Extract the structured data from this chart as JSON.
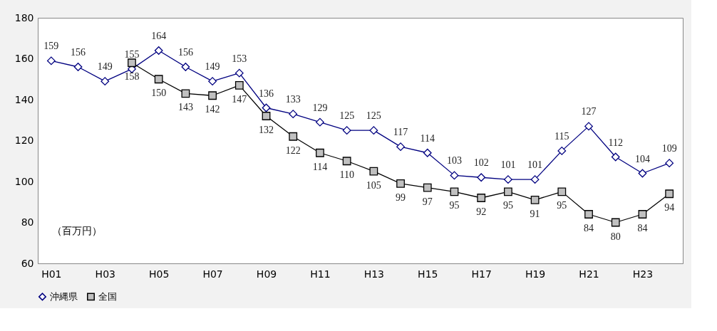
{
  "chart_data": {
    "type": "line",
    "categories": [
      "H01",
      null,
      "H03",
      null,
      "H05",
      null,
      "H07",
      null,
      "H09",
      null,
      "H11",
      null,
      "H13",
      null,
      "H15",
      null,
      "H17",
      null,
      "H19",
      null,
      "H21",
      null,
      "H23",
      null
    ],
    "series": [
      {
        "name": "沖縄県",
        "color": "#000080",
        "marker": "diamond",
        "values": [
          159,
          156,
          149,
          155,
          164,
          156,
          149,
          153,
          136,
          133,
          129,
          125,
          125,
          117,
          114,
          103,
          102,
          101,
          101,
          115,
          127,
          112,
          104,
          109
        ]
      },
      {
        "name": "全国",
        "color": "#000000",
        "marker": "square",
        "values": [
          null,
          null,
          null,
          158,
          150,
          143,
          142,
          147,
          132,
          122,
          114,
          110,
          105,
          99,
          97,
          95,
          92,
          95,
          91,
          95,
          84,
          80,
          84,
          94
        ]
      }
    ],
    "ylim": [
      60,
      180
    ],
    "yticks": [
      60,
      80,
      100,
      120,
      140,
      160,
      180
    ],
    "data_labels": true,
    "legend": "bottom",
    "grid": false,
    "annotations": [
      "（百万円）"
    ]
  }
}
